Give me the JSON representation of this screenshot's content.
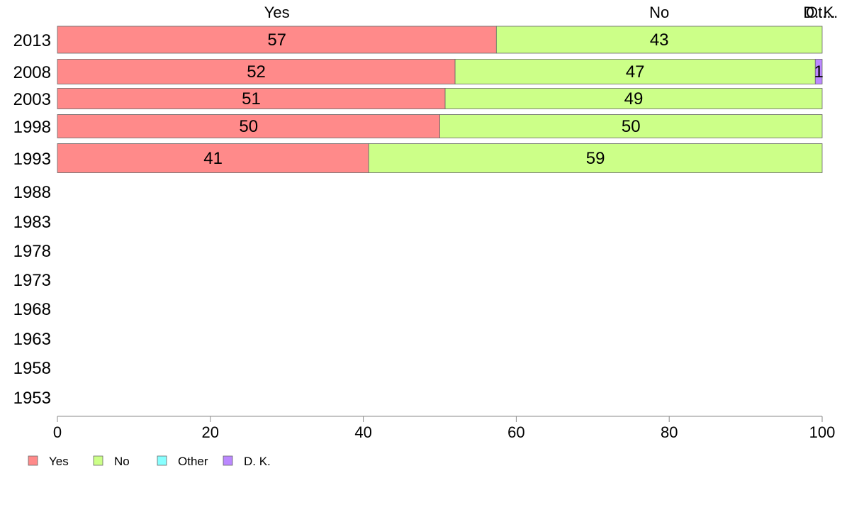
{
  "chart_data": {
    "type": "bar",
    "orientation": "horizontal",
    "stacked": true,
    "categories": [
      "2013",
      "2008",
      "2003",
      "1998",
      "1993",
      "1988",
      "1983",
      "1978",
      "1973",
      "1968",
      "1963",
      "1958",
      "1953"
    ],
    "series": [
      {
        "name": "Yes",
        "color": "#ff8a8a",
        "values": [
          57.4,
          52,
          50.7,
          50,
          40.7,
          null,
          null,
          null,
          null,
          null,
          null,
          null,
          null
        ],
        "labels": [
          "57",
          "52",
          "51",
          "50",
          "41",
          "",
          "",
          "",
          "",
          "",
          "",
          "",
          ""
        ]
      },
      {
        "name": "No",
        "color": "#ccff88",
        "values": [
          42.6,
          47.1,
          49.3,
          50,
          59.3,
          null,
          null,
          null,
          null,
          null,
          null,
          null,
          null
        ],
        "labels": [
          "43",
          "47",
          "49",
          "50",
          "59",
          "",
          "",
          "",
          "",
          "",
          "",
          "",
          ""
        ]
      },
      {
        "name": "Other",
        "color": "#88ffff",
        "values": [
          0,
          0,
          0,
          0,
          0,
          null,
          null,
          null,
          null,
          null,
          null,
          null,
          null
        ],
        "labels": [
          "",
          "",
          "",
          "",
          "",
          "",
          "",
          "",
          "",
          "",
          "",
          "",
          ""
        ]
      },
      {
        "name": "D. K.",
        "color": "#bb88ff",
        "values": [
          0,
          0.9,
          0,
          0,
          0,
          null,
          null,
          null,
          null,
          null,
          null,
          null,
          null
        ],
        "labels": [
          "",
          "1",
          "",
          "",
          "",
          "",
          "",
          "",
          "",
          "",
          "",
          "",
          ""
        ]
      }
    ],
    "top_labels": [
      {
        "text": "Yes",
        "x": 28.7
      },
      {
        "text": "No",
        "x": 78.7
      },
      {
        "text": "D. K.",
        "x": 99.8
      },
      {
        "text": "Ot...",
        "x": 99.8
      }
    ],
    "xlim": [
      0,
      100
    ],
    "xticks": [
      0,
      20,
      40,
      60,
      80,
      100
    ],
    "xlabel": "",
    "ylabel": "",
    "title": "",
    "grid": false,
    "legend_position": "bottom-left"
  }
}
